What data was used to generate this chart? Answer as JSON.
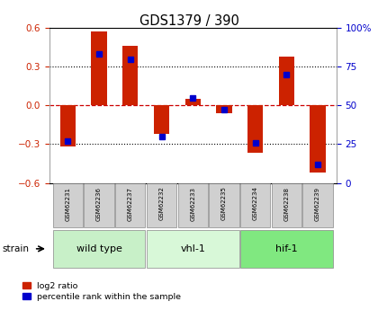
{
  "title": "GDS1379 / 390",
  "samples": [
    "GSM62231",
    "GSM62236",
    "GSM62237",
    "GSM62232",
    "GSM62233",
    "GSM62235",
    "GSM62234",
    "GSM62238",
    "GSM62239"
  ],
  "log2_ratios": [
    -0.32,
    0.57,
    0.46,
    -0.22,
    0.05,
    -0.06,
    -0.37,
    0.38,
    -0.52
  ],
  "percentile_ranks": [
    27,
    83,
    80,
    30,
    55,
    47,
    26,
    70,
    12
  ],
  "groups": [
    {
      "label": "wild type",
      "start": 0,
      "end": 3,
      "color": "#c8f0c8"
    },
    {
      "label": "vhl-1",
      "start": 3,
      "end": 6,
      "color": "#d8f8d8"
    },
    {
      "label": "hif-1",
      "start": 6,
      "end": 9,
      "color": "#80e880"
    }
  ],
  "bar_color_red": "#cc2200",
  "bar_color_blue": "#0000cc",
  "ylim_left": [
    -0.6,
    0.6
  ],
  "ylim_right": [
    0,
    100
  ],
  "yticks_left": [
    -0.6,
    -0.3,
    0.0,
    0.3,
    0.6
  ],
  "yticks_right": [
    0,
    25,
    50,
    75,
    100
  ],
  "hline_color_red": "#cc0000",
  "hline_color_black": "#000000",
  "bg_color": "#ffffff",
  "axis_color_left": "#cc2200",
  "axis_color_right": "#0000cc",
  "strain_label": "strain",
  "legend_log2": "log2 ratio",
  "legend_pct": "percentile rank within the sample",
  "bar_width": 0.5,
  "n_samples": 9
}
